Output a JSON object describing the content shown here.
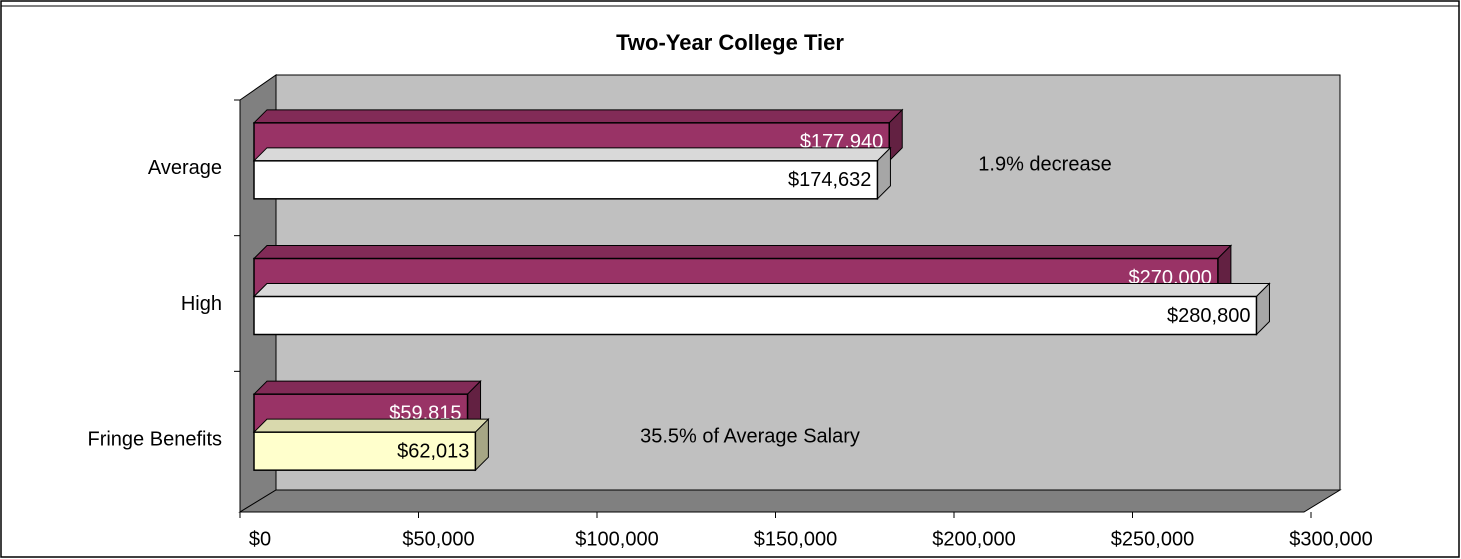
{
  "chart_data": {
    "type": "bar",
    "orientation": "horizontal",
    "title": "Two-Year College Tier",
    "categories": [
      "Average",
      "High",
      "Fringe Benefits"
    ],
    "series": [
      {
        "color": "#993366",
        "values": [
          177940,
          270000,
          59815
        ],
        "value_labels": [
          "$177,940",
          "$270,000",
          "$59,815"
        ]
      },
      {
        "color": "#ffffff",
        "colors": [
          "#ffffff",
          "#ffffff",
          "#ffffcc"
        ],
        "values": [
          174632,
          280800,
          62013
        ],
        "value_labels": [
          "$174,632",
          "$280,800",
          "$62,013"
        ]
      }
    ],
    "annotations": [
      "1.9% decrease",
      "35.5% of Average Salary"
    ],
    "xlim": [
      0,
      300000
    ],
    "xticks": [
      {
        "value": 0,
        "label": "$0"
      },
      {
        "value": 50000,
        "label": "$50,000"
      },
      {
        "value": 100000,
        "label": "$100,000"
      },
      {
        "value": 150000,
        "label": "$150,000"
      },
      {
        "value": 200000,
        "label": "$200,000"
      },
      {
        "value": 250000,
        "label": "$250,000"
      },
      {
        "value": 300000,
        "label": "$300,000"
      }
    ]
  }
}
